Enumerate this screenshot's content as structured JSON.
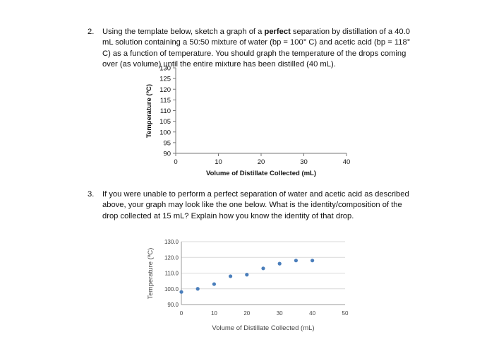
{
  "question2": {
    "number": "2.",
    "line1_a": "Using the template below, sketch a graph of a ",
    "line1_bold": "perfect",
    "line1_b": " separation by distillation of a 40.0",
    "line2": "mL solution containing a 50:50 mixture of water (bp = 100° C) and acetic acid (bp = 118°",
    "line3": "C) as a function of temperature.  You should graph the temperature of the drops coming",
    "line4": "over (as volume) until the entire mixture has been distilled (40 mL)."
  },
  "question3": {
    "number": "3.",
    "line1": "If you were unable to perform a perfect separation of water and acetic acid as described",
    "line2": "above, your graph may look like the one below. What is the identity/composition of the",
    "line3": "drop collected at 15 mL? Explain how you know the identity of that drop."
  },
  "chart_data": [
    {
      "type": "scatter",
      "xlabel": "Volume of Distillate Collected (mL)",
      "ylabel": "Temperature (ºC)",
      "xlim": [
        0,
        40
      ],
      "ylim": [
        90,
        130
      ],
      "x_ticks": [
        "0",
        "10",
        "20",
        "30",
        "40"
      ],
      "y_ticks": [
        "90",
        "95",
        "100",
        "105",
        "110",
        "115",
        "120",
        "125",
        "130"
      ],
      "grid": false,
      "series": []
    },
    {
      "type": "scatter",
      "xlabel": "Volume of Distillate Collected (mL)",
      "ylabel": "Temperature (ºC)",
      "xlim": [
        0,
        50
      ],
      "ylim": [
        90,
        130
      ],
      "x_ticks": [
        "0",
        "10",
        "20",
        "30",
        "40",
        "50"
      ],
      "y_ticks": [
        "90.0",
        "100.0",
        "110.0",
        "120.0",
        "130.0"
      ],
      "grid": true,
      "point_color": "#4a7ebb",
      "points": [
        {
          "x": 0,
          "y": 98
        },
        {
          "x": 5,
          "y": 100
        },
        {
          "x": 10,
          "y": 103
        },
        {
          "x": 15,
          "y": 108
        },
        {
          "x": 20,
          "y": 109
        },
        {
          "x": 25,
          "y": 113
        },
        {
          "x": 30,
          "y": 116
        },
        {
          "x": 35,
          "y": 118
        },
        {
          "x": 40,
          "y": 118
        }
      ]
    }
  ]
}
